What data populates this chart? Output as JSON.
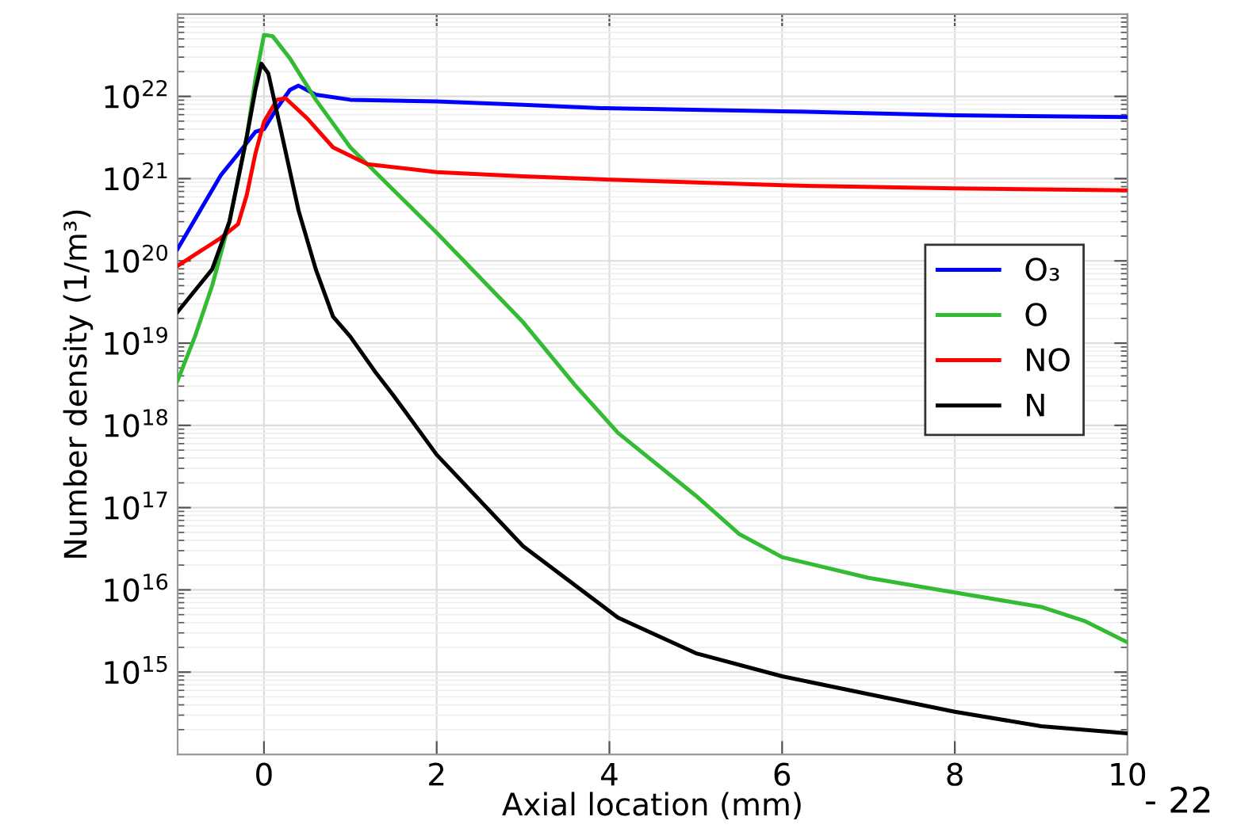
{
  "chart_data": {
    "type": "line",
    "xlabel": "Axial location (mm)",
    "ylabel": "Number density (1/m³)",
    "xlim": [
      -1,
      10
    ],
    "xticks": [
      0,
      2,
      4,
      6,
      8,
      10
    ],
    "log": "y",
    "ylim": [
      100000000000000.0,
      1e+23
    ],
    "yticks": [
      {
        "value": 1000000000000000.0,
        "label": "10$^{15}$"
      },
      {
        "value": 1e+16,
        "label": "10$^{16}$"
      },
      {
        "value": 1e+17,
        "label": "10$^{17}$"
      },
      {
        "value": 1e+18,
        "label": "10$^{18}$"
      },
      {
        "value": 1e+19,
        "label": "10$^{19}$"
      },
      {
        "value": 1e+20,
        "label": "10$^{20}$"
      },
      {
        "value": 1e+21,
        "label": "10$^{21}$"
      },
      {
        "value": 1e+22,
        "label": "10$^{22}$"
      }
    ],
    "grid": true,
    "legend": "right",
    "line_style": "solid",
    "marker": "none",
    "annotations": [
      "- 22"
    ],
    "series": [
      {
        "name": "O₃",
        "color": "#0000ff",
        "x": [
          -1,
          -0.5,
          -0.3,
          -0.1,
          0,
          0.15,
          0.3,
          0.4,
          0.6,
          1,
          2,
          3,
          3.9,
          6,
          8,
          10
        ],
        "values": [
          1.4e+20,
          1.1e+21,
          2e+21,
          3.7e+21,
          4e+21,
          7.2e+21,
          1.2e+22,
          1.35e+22,
          1.05e+22,
          9.1e+21,
          8.7e+21,
          7.9e+21,
          7.2e+21,
          6.6e+21,
          5.9e+21,
          5.6e+21
        ]
      },
      {
        "name": "O",
        "color": "#33bb33",
        "x": [
          -1,
          -0.8,
          -0.6,
          -0.4,
          -0.2,
          -0.1,
          0,
          0.1,
          0.3,
          0.6,
          1,
          2,
          3,
          3.6,
          4.1,
          5,
          5.5,
          6,
          7,
          8,
          9,
          9.5,
          10
        ],
        "values": [
          3.5e+18,
          1.2e+19,
          5e+19,
          3e+20,
          3.2e+21,
          1.6e+22,
          5.6e+22,
          5.4e+22,
          2.9e+22,
          9.1e+21,
          2.4e+21,
          2.2e+20,
          1.8e+19,
          3.1e+18,
          8.1e+17,
          1.4e+17,
          4.8e+16,
          2.5e+16,
          1.4e+16,
          9300000000000000.0,
          6200000000000000.0,
          4200000000000000.0,
          2300000000000000.0
        ]
      },
      {
        "name": "NO",
        "color": "#ff0000",
        "x": [
          -1,
          -0.5,
          -0.3,
          -0.2,
          -0.1,
          0,
          0.15,
          0.25,
          0.5,
          0.8,
          1.2,
          2,
          3,
          3.9,
          6,
          8,
          10
        ],
        "values": [
          8.7e+19,
          1.9e+20,
          2.8e+20,
          6.3e+20,
          2e+21,
          4.9e+21,
          9.1e+21,
          9.5e+21,
          5.4e+21,
          2.4e+21,
          1.5e+21,
          1.2e+21,
          1.07e+21,
          9.8e+20,
          8.3e+20,
          7.6e+20,
          7.2e+20
        ]
      },
      {
        "name": "N",
        "color": "#000000",
        "x": [
          -1,
          -0.6,
          -0.4,
          -0.2,
          -0.1,
          -0.03,
          0.05,
          0.2,
          0.4,
          0.6,
          0.8,
          1,
          1.3,
          1.5,
          2,
          3,
          4.1,
          5,
          6,
          7,
          8,
          9,
          10
        ],
        "values": [
          2.4e+19,
          7.9e+19,
          3e+20,
          3.2e+21,
          1.2e+22,
          2.5e+22,
          1.9e+22,
          3.7e+21,
          4.1e+20,
          7.9e+19,
          2.1e+19,
          1.2e+19,
          4.3e+18,
          2.3e+18,
          4.4e+17,
          3.4e+16,
          4600000000000000.0,
          1700000000000000.0,
          890000000000000.0,
          540000000000000.0,
          330000000000000.0,
          220000000000000.0,
          180000000000000.0
        ]
      }
    ]
  }
}
